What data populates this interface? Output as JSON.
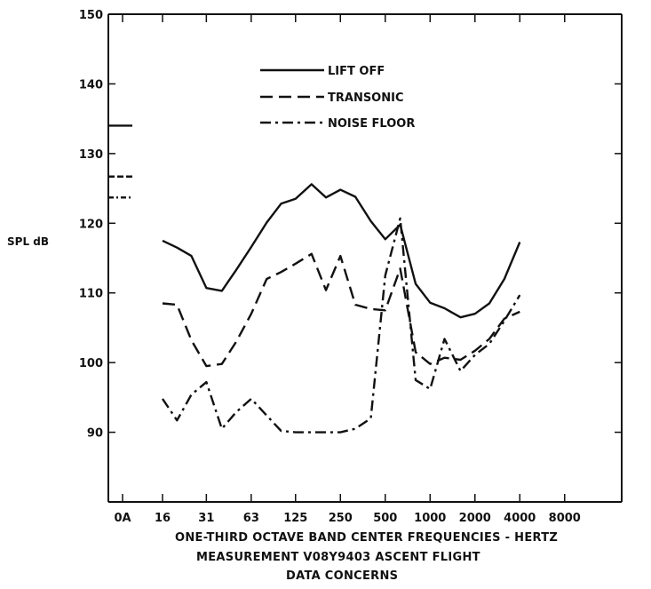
{
  "chart_data": {
    "type": "line",
    "title": "",
    "ylabel": "SPL dB",
    "xlabel": "ONE-THIRD OCTAVE BAND CENTER FREQUENCIES - HERTZ",
    "captions": [
      "MEASUREMENT  V08Y9403  ASCENT FLIGHT",
      "DATA CONCERNS"
    ],
    "ylim": [
      80,
      150
    ],
    "yticks": [
      90,
      100,
      110,
      120,
      130,
      140,
      150
    ],
    "xtick_labels": [
      "0A",
      "16",
      "31",
      "63",
      "125",
      "250",
      "500",
      "1000",
      "2000",
      "4000",
      "8000"
    ],
    "x_scale": "log2 (one-third octave bands)",
    "legend_position": "top-center",
    "series": [
      {
        "name": "LIFT OFF",
        "style": "solid",
        "overall_0A": 134,
        "points": [
          [
            16,
            117.5
          ],
          [
            20,
            116.5
          ],
          [
            25,
            115.3
          ],
          [
            31.5,
            110.7
          ],
          [
            40,
            110.3
          ],
          [
            50,
            113.3
          ],
          [
            63,
            116.6
          ],
          [
            80,
            120.1
          ],
          [
            100,
            122.8
          ],
          [
            125,
            123.5
          ],
          [
            160,
            125.6
          ],
          [
            200,
            123.7
          ],
          [
            250,
            124.8
          ],
          [
            315,
            123.8
          ],
          [
            400,
            120.3
          ],
          [
            500,
            117.7
          ],
          [
            630,
            119.8
          ],
          [
            800,
            111.3
          ],
          [
            1000,
            108.6
          ],
          [
            1250,
            107.8
          ],
          [
            1600,
            106.5
          ],
          [
            2000,
            107.0
          ],
          [
            2500,
            108.5
          ],
          [
            3150,
            112.0
          ],
          [
            4000,
            117.3
          ]
        ]
      },
      {
        "name": "TRANSONIC",
        "style": "dashed",
        "overall_0A": 126.7,
        "points": [
          [
            16,
            108.5
          ],
          [
            20,
            108.3
          ],
          [
            25,
            103.2
          ],
          [
            31.5,
            99.5
          ],
          [
            40,
            99.8
          ],
          [
            50,
            103.0
          ],
          [
            63,
            107.0
          ],
          [
            80,
            112.0
          ],
          [
            100,
            113.0
          ],
          [
            125,
            114.2
          ],
          [
            160,
            115.6
          ],
          [
            200,
            110.4
          ],
          [
            250,
            115.3
          ],
          [
            315,
            108.3
          ],
          [
            400,
            107.7
          ],
          [
            500,
            107.5
          ],
          [
            630,
            113.5
          ],
          [
            800,
            101.5
          ],
          [
            1000,
            99.8
          ],
          [
            1250,
            100.7
          ],
          [
            1600,
            100.4
          ],
          [
            2000,
            101.7
          ],
          [
            2500,
            103.4
          ],
          [
            3150,
            106.3
          ],
          [
            4000,
            107.3
          ]
        ]
      },
      {
        "name": "NOISE FLOOR",
        "style": "dash-dot",
        "overall_0A": 123.7,
        "points": [
          [
            16,
            94.8
          ],
          [
            20,
            91.7
          ],
          [
            25,
            95.4
          ],
          [
            31.5,
            97.2
          ],
          [
            40,
            90.5
          ],
          [
            50,
            92.9
          ],
          [
            63,
            94.8
          ],
          [
            80,
            92.4
          ],
          [
            100,
            90.2
          ],
          [
            125,
            90.0
          ],
          [
            160,
            90.0
          ],
          [
            200,
            90.0
          ],
          [
            250,
            90.0
          ],
          [
            315,
            90.5
          ],
          [
            400,
            92.0
          ],
          [
            500,
            112.5
          ],
          [
            630,
            120.7
          ],
          [
            800,
            97.5
          ],
          [
            1000,
            96.2
          ],
          [
            1250,
            103.4
          ],
          [
            1600,
            98.8
          ],
          [
            2000,
            101.1
          ],
          [
            2500,
            102.7
          ],
          [
            3150,
            106.0
          ],
          [
            4000,
            109.7
          ]
        ]
      }
    ]
  }
}
